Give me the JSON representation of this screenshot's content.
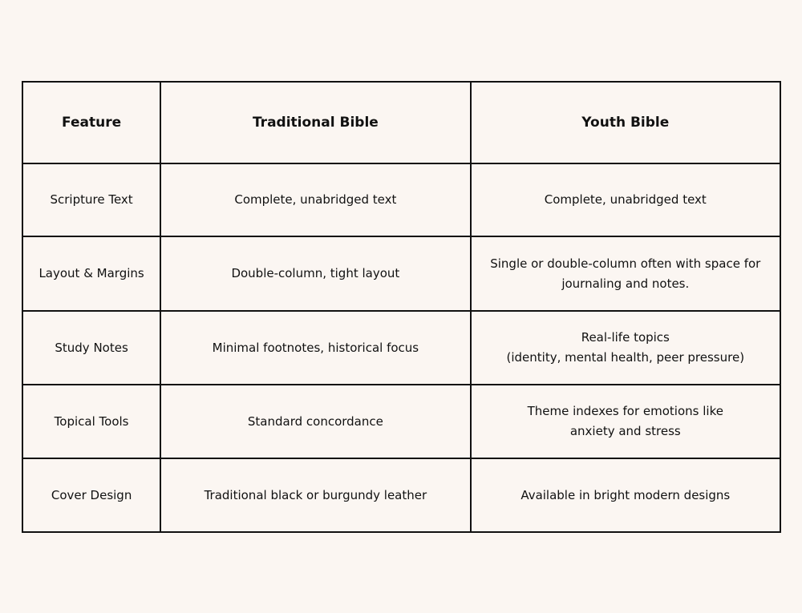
{
  "table": {
    "headers": [
      "Feature",
      "Traditional Bible",
      "Youth Bible"
    ],
    "rows": [
      {
        "feature": "Scripture Text",
        "traditional": [
          "Complete, unabridged text"
        ],
        "youth": [
          "Complete, unabridged text"
        ]
      },
      {
        "feature": "Layout & Margins",
        "traditional": [
          "Double-column, tight layout"
        ],
        "youth": [
          "Single or double-column often with space for",
          "journaling and notes."
        ]
      },
      {
        "feature": "Study Notes",
        "traditional": [
          "Minimal footnotes, historical focus"
        ],
        "youth": [
          "Real-life topics",
          "(identity, mental health, peer pressure)"
        ]
      },
      {
        "feature": "Topical Tools",
        "traditional": [
          "Standard concordance"
        ],
        "youth": [
          "Theme indexes for emotions like",
          "anxiety and stress"
        ]
      },
      {
        "feature": "Cover Design",
        "traditional": [
          "Traditional black or burgundy leather"
        ],
        "youth": [
          "Available in bright modern designs"
        ]
      }
    ]
  }
}
